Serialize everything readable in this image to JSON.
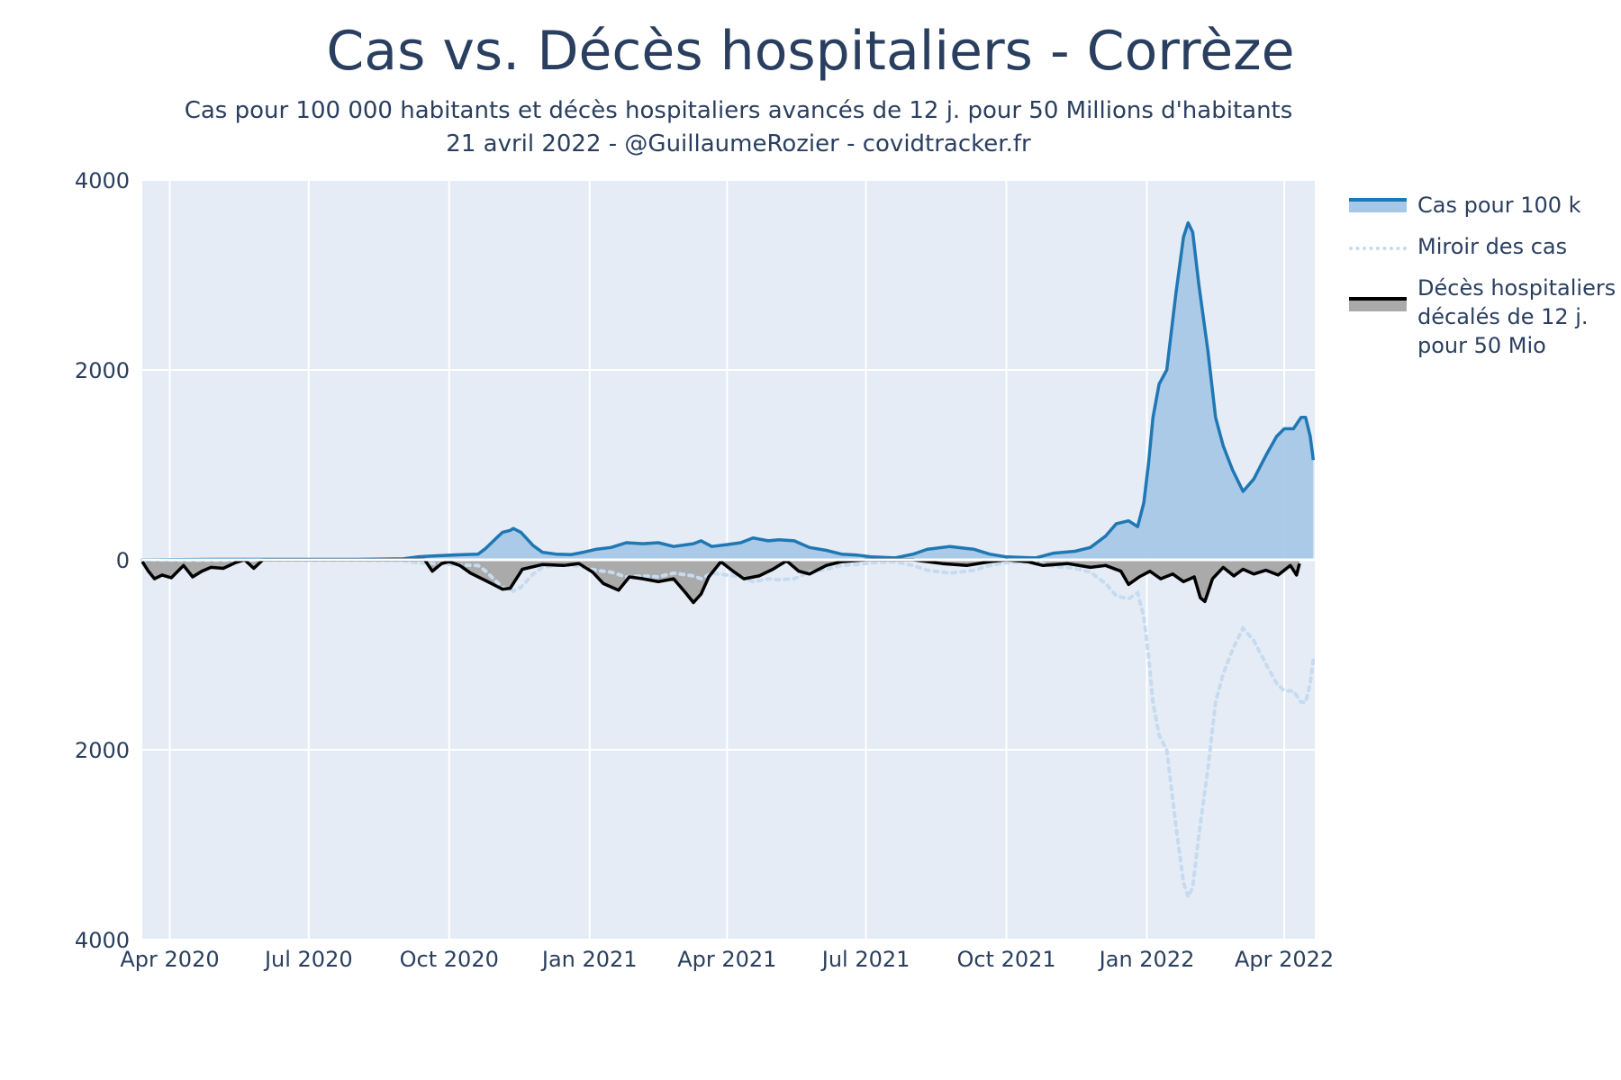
{
  "chart_data": {
    "type": "area",
    "title": "Cas vs. Décès hospitaliers - Corrèze",
    "subtitle_lines": [
      "Cas pour 100 000 habitants et décès hospitaliers avancés de 12 j. pour 50 Millions d'habitants",
      "21 avril 2022 - @GuillaumeRozier - covidtracker.fr"
    ],
    "xlabel": "",
    "ylabel": "",
    "x_range": [
      "2020-03-14",
      "2022-04-21"
    ],
    "y_range": [
      -4000,
      4000
    ],
    "x_ticks": [
      {
        "date": "2020-04-01",
        "label": "Apr 2020"
      },
      {
        "date": "2020-07-01",
        "label": "Jul 2020"
      },
      {
        "date": "2020-10-01",
        "label": "Oct 2020"
      },
      {
        "date": "2021-01-01",
        "label": "Jan 2021"
      },
      {
        "date": "2021-04-01",
        "label": "Apr 2021"
      },
      {
        "date": "2021-07-01",
        "label": "Jul 2021"
      },
      {
        "date": "2021-10-01",
        "label": "Oct 2021"
      },
      {
        "date": "2022-01-01",
        "label": "Jan 2022"
      },
      {
        "date": "2022-04-01",
        "label": "Apr 2022"
      }
    ],
    "y_ticks": [
      {
        "value": 4000,
        "label": "4000"
      },
      {
        "value": 2000,
        "label": "2000"
      },
      {
        "value": 0,
        "label": "0"
      },
      {
        "value": -2000,
        "label": "2000"
      },
      {
        "value": -4000,
        "label": "4000"
      }
    ],
    "grid": true,
    "legend_position": "right",
    "series": [
      {
        "name": "Cas pour 100 k",
        "style": "line-filled",
        "line_color": "#1f77b4",
        "fill_color": "#a6c8e6",
        "points": [
          [
            "2020-03-14",
            0
          ],
          [
            "2020-05-01",
            5
          ],
          [
            "2020-08-01",
            5
          ],
          [
            "2020-09-01",
            10
          ],
          [
            "2020-09-10",
            30
          ],
          [
            "2020-09-20",
            40
          ],
          [
            "2020-10-10",
            55
          ],
          [
            "2020-10-20",
            60
          ],
          [
            "2020-10-25",
            120
          ],
          [
            "2020-11-01",
            230
          ],
          [
            "2020-11-05",
            290
          ],
          [
            "2020-11-10",
            310
          ],
          [
            "2020-11-12",
            330
          ],
          [
            "2020-11-17",
            290
          ],
          [
            "2020-11-25",
            150
          ],
          [
            "2020-12-01",
            80
          ],
          [
            "2020-12-10",
            60
          ],
          [
            "2020-12-20",
            55
          ],
          [
            "2020-12-28",
            80
          ],
          [
            "2021-01-05",
            110
          ],
          [
            "2021-01-15",
            130
          ],
          [
            "2021-01-25",
            180
          ],
          [
            "2021-02-05",
            170
          ],
          [
            "2021-02-15",
            180
          ],
          [
            "2021-02-25",
            140
          ],
          [
            "2021-03-10",
            170
          ],
          [
            "2021-03-15",
            200
          ],
          [
            "2021-03-22",
            140
          ],
          [
            "2021-04-01",
            160
          ],
          [
            "2021-04-10",
            180
          ],
          [
            "2021-04-18",
            230
          ],
          [
            "2021-04-28",
            200
          ],
          [
            "2021-05-05",
            210
          ],
          [
            "2021-05-15",
            200
          ],
          [
            "2021-05-25",
            130
          ],
          [
            "2021-06-05",
            100
          ],
          [
            "2021-06-15",
            60
          ],
          [
            "2021-06-25",
            50
          ],
          [
            "2021-07-05",
            30
          ],
          [
            "2021-07-20",
            20
          ],
          [
            "2021-08-01",
            60
          ],
          [
            "2021-08-10",
            110
          ],
          [
            "2021-08-25",
            140
          ],
          [
            "2021-09-10",
            110
          ],
          [
            "2021-09-20",
            60
          ],
          [
            "2021-10-01",
            30
          ],
          [
            "2021-10-20",
            20
          ],
          [
            "2021-11-01",
            70
          ],
          [
            "2021-11-15",
            90
          ],
          [
            "2021-11-25",
            130
          ],
          [
            "2021-12-05",
            250
          ],
          [
            "2021-12-12",
            380
          ],
          [
            "2021-12-20",
            410
          ],
          [
            "2021-12-26",
            350
          ],
          [
            "2021-12-30",
            600
          ],
          [
            "2022-01-02",
            1000
          ],
          [
            "2022-01-05",
            1500
          ],
          [
            "2022-01-09",
            1850
          ],
          [
            "2022-01-14",
            2000
          ],
          [
            "2022-01-20",
            2800
          ],
          [
            "2022-01-25",
            3400
          ],
          [
            "2022-01-28",
            3550
          ],
          [
            "2022-01-31",
            3450
          ],
          [
            "2022-02-04",
            2900
          ],
          [
            "2022-02-10",
            2200
          ],
          [
            "2022-02-15",
            1500
          ],
          [
            "2022-02-20",
            1200
          ],
          [
            "2022-02-26",
            950
          ],
          [
            "2022-03-05",
            720
          ],
          [
            "2022-03-12",
            850
          ],
          [
            "2022-03-20",
            1100
          ],
          [
            "2022-03-27",
            1300
          ],
          [
            "2022-04-01",
            1380
          ],
          [
            "2022-04-07",
            1380
          ],
          [
            "2022-04-12",
            1500
          ],
          [
            "2022-04-15",
            1500
          ],
          [
            "2022-04-18",
            1300
          ],
          [
            "2022-04-20",
            1050
          ]
        ]
      },
      {
        "name": "Miroir des cas",
        "style": "dotted-line",
        "line_color": "#c6dbef",
        "mirror_of": "Cas pour 100 k"
      },
      {
        "name": "Décès hospitaliers\ndécalés de 12 j.\npour 50 Mio",
        "style": "line-filled",
        "line_color": "#000000",
        "fill_color": "#aaaaaa",
        "points": [
          [
            "2020-03-14",
            -20
          ],
          [
            "2020-03-18",
            -120
          ],
          [
            "2020-03-22",
            -200
          ],
          [
            "2020-03-27",
            -160
          ],
          [
            "2020-04-02",
            -190
          ],
          [
            "2020-04-10",
            -60
          ],
          [
            "2020-04-16",
            -180
          ],
          [
            "2020-04-22",
            -120
          ],
          [
            "2020-04-28",
            -80
          ],
          [
            "2020-05-06",
            -90
          ],
          [
            "2020-05-14",
            -30
          ],
          [
            "2020-05-20",
            0
          ],
          [
            "2020-05-26",
            -90
          ],
          [
            "2020-06-01",
            0
          ],
          [
            "2020-09-15",
            0
          ],
          [
            "2020-09-20",
            -120
          ],
          [
            "2020-09-26",
            -40
          ],
          [
            "2020-10-01",
            -20
          ],
          [
            "2020-10-08",
            -60
          ],
          [
            "2020-10-15",
            -140
          ],
          [
            "2020-10-25",
            -220
          ],
          [
            "2020-11-05",
            -310
          ],
          [
            "2020-11-10",
            -300
          ],
          [
            "2020-11-18",
            -100
          ],
          [
            "2020-12-01",
            -50
          ],
          [
            "2020-12-15",
            -60
          ],
          [
            "2020-12-25",
            -40
          ],
          [
            "2021-01-03",
            -130
          ],
          [
            "2021-01-10",
            -250
          ],
          [
            "2021-01-20",
            -320
          ],
          [
            "2021-01-27",
            -180
          ],
          [
            "2021-02-05",
            -200
          ],
          [
            "2021-02-15",
            -230
          ],
          [
            "2021-02-25",
            -200
          ],
          [
            "2021-03-05",
            -350
          ],
          [
            "2021-03-10",
            -450
          ],
          [
            "2021-03-15",
            -360
          ],
          [
            "2021-03-20",
            -180
          ],
          [
            "2021-03-28",
            -20
          ],
          [
            "2021-04-05",
            -120
          ],
          [
            "2021-04-12",
            -200
          ],
          [
            "2021-04-22",
            -170
          ],
          [
            "2021-05-01",
            -100
          ],
          [
            "2021-05-10",
            -10
          ],
          [
            "2021-05-18",
            -120
          ],
          [
            "2021-05-25",
            -150
          ],
          [
            "2021-06-05",
            -60
          ],
          [
            "2021-06-15",
            -20
          ],
          [
            "2021-07-01",
            0
          ],
          [
            "2021-08-01",
            0
          ],
          [
            "2021-08-20",
            -40
          ],
          [
            "2021-09-05",
            -60
          ],
          [
            "2021-09-20",
            -20
          ],
          [
            "2021-10-01",
            0
          ],
          [
            "2021-10-15",
            -20
          ],
          [
            "2021-10-25",
            -60
          ],
          [
            "2021-11-10",
            -40
          ],
          [
            "2021-11-25",
            -80
          ],
          [
            "2021-12-05",
            -60
          ],
          [
            "2021-12-15",
            -120
          ],
          [
            "2021-12-20",
            -260
          ],
          [
            "2021-12-27",
            -180
          ],
          [
            "2022-01-03",
            -120
          ],
          [
            "2022-01-10",
            -200
          ],
          [
            "2022-01-18",
            -150
          ],
          [
            "2022-01-25",
            -230
          ],
          [
            "2022-02-01",
            -180
          ],
          [
            "2022-02-05",
            -400
          ],
          [
            "2022-02-08",
            -440
          ],
          [
            "2022-02-13",
            -200
          ],
          [
            "2022-02-20",
            -80
          ],
          [
            "2022-02-27",
            -170
          ],
          [
            "2022-03-05",
            -100
          ],
          [
            "2022-03-12",
            -150
          ],
          [
            "2022-03-20",
            -110
          ],
          [
            "2022-03-28",
            -160
          ],
          [
            "2022-04-05",
            -60
          ],
          [
            "2022-04-09",
            -160
          ],
          [
            "2022-04-11",
            -40
          ]
        ]
      }
    ]
  }
}
